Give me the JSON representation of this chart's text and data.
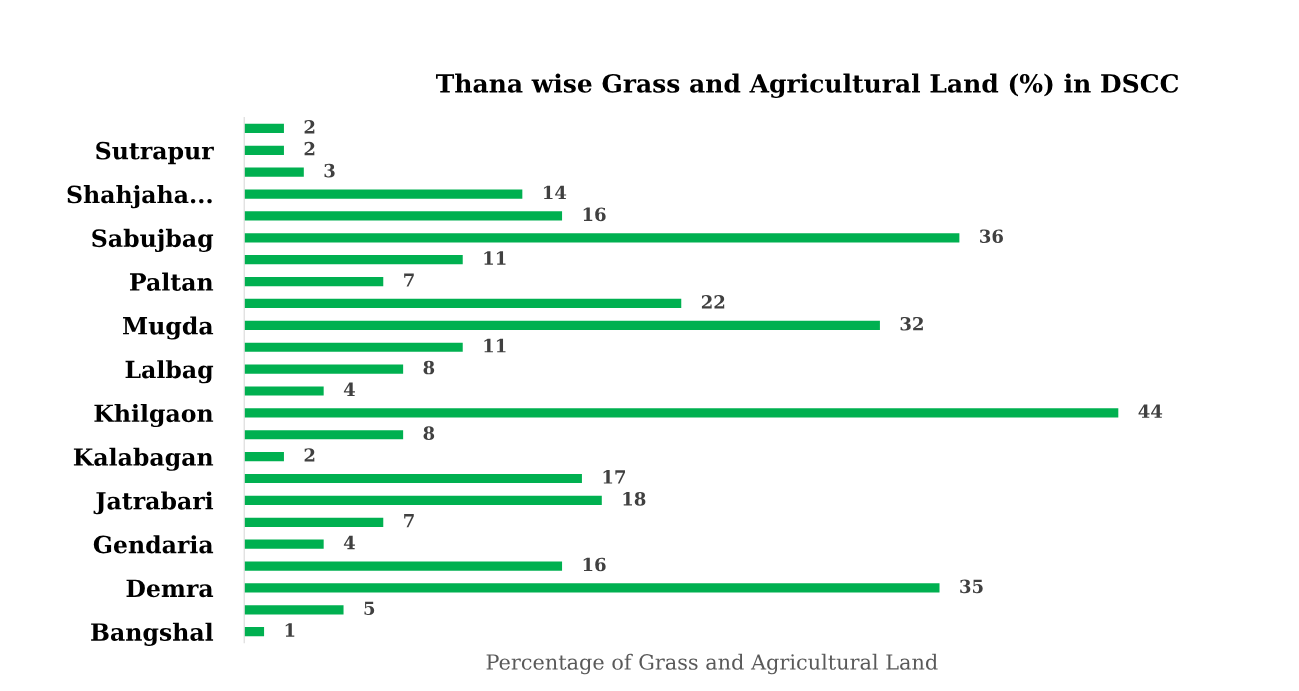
{
  "chart_data": {
    "type": "bar",
    "orientation": "horizontal",
    "title": "Thana wise Grass and Agricultural Land (%) in DSCC",
    "xlabel": "Percentage of Grass and Agricultural Land",
    "categories": [
      null,
      "Sutrapur",
      null,
      "Shahjaha...",
      null,
      "Sabujbag",
      null,
      "Paltan",
      null,
      "Mugda",
      null,
      "Lalbag",
      null,
      "Khilgaon",
      null,
      "Kalabagan",
      null,
      "Jatrabari",
      null,
      "Gendaria",
      null,
      "Demra",
      null,
      "Bangshal"
    ],
    "values": [
      2,
      2,
      3,
      14,
      16,
      36,
      11,
      7,
      22,
      32,
      11,
      8,
      4,
      44,
      8,
      2,
      17,
      18,
      7,
      4,
      16,
      35,
      5,
      1
    ],
    "color": "#00b050",
    "data_labels": true,
    "grid": false,
    "legend": false,
    "tick_labels": "y"
  }
}
